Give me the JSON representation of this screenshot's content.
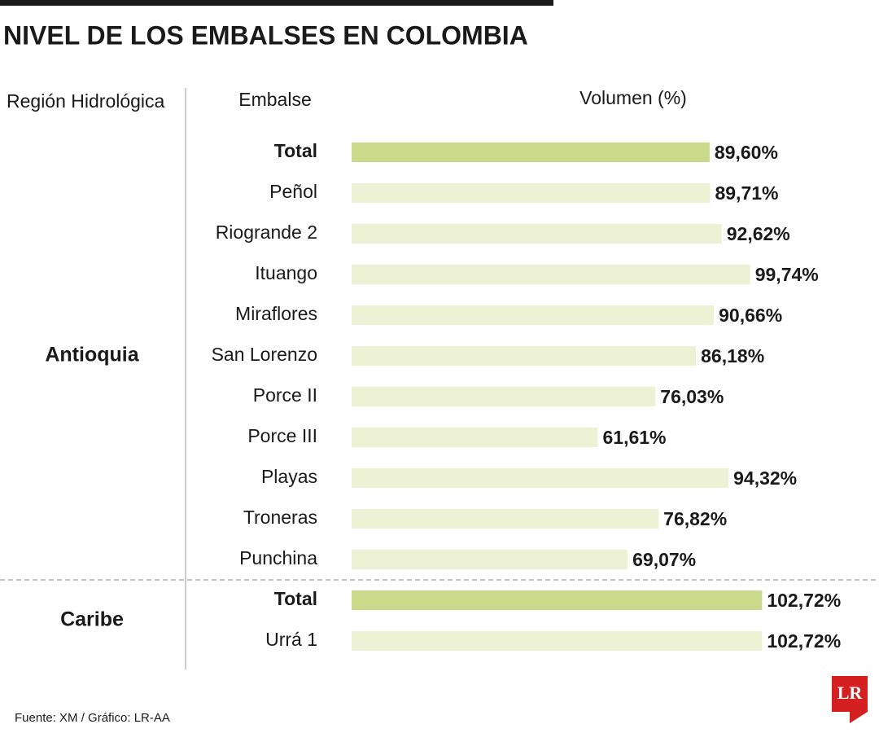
{
  "chart_data": {
    "type": "bar",
    "title": "NIVEL DE LOS EMBALSES EN COLOMBIA",
    "headers": [
      "Región Hidrológica",
      "Embalse",
      "Volumen (%)"
    ],
    "color": "#eef2d4",
    "highlight_color": "#c9da8a",
    "groups": [
      {
        "name": "Antioquia",
        "categories": [
          "Total",
          "Peñol",
          "Riogrande 2",
          "Ituango",
          "Miraflores",
          "San Lorenzo",
          "Porce II",
          "Porce III",
          "Playas",
          "Troneras",
          "Punchina"
        ],
        "values": [
          89.6,
          89.71,
          92.62,
          99.74,
          90.66,
          86.18,
          76.03,
          61.61,
          94.32,
          76.82,
          69.07
        ],
        "value_labels": [
          "89,60%",
          "89,71%",
          "92,62%",
          "99,74%",
          "90,66%",
          "86,18%",
          "76,03%",
          "61,61%",
          "94,32%",
          "76,82%",
          "69,07%"
        ]
      },
      {
        "name": "Caribe",
        "categories": [
          "Total",
          "Urrá 1"
        ],
        "values": [
          102.72,
          102.72
        ],
        "value_labels": [
          "102,72%",
          "102,72%"
        ]
      }
    ],
    "source": "Fuente: XM / Gráfico: LR-AA",
    "logo": "LR"
  }
}
